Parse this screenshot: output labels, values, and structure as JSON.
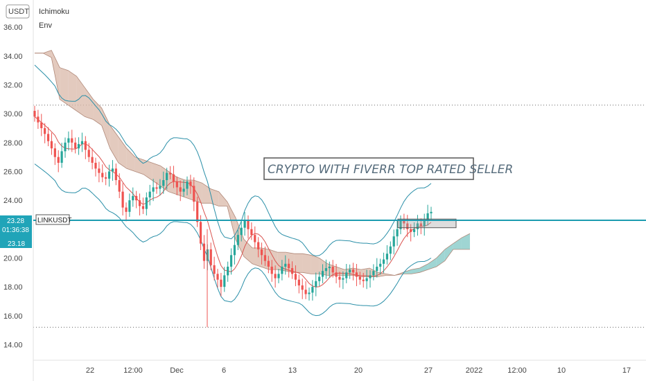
{
  "chart_data": {
    "type": "candlestick",
    "symbol": "LINKUSDT",
    "currency_label": "USDT",
    "indicators": [
      "Ichimoku",
      "Env"
    ],
    "annotation": "CRYPTO WITH FIVERR TOP RATED SELLER",
    "price_badges": {
      "last": "23.28",
      "countdown": "01:36:38",
      "other": "23.18"
    },
    "y_axis": {
      "ticks": [
        "36.00",
        "34.00",
        "32.00",
        "30.00",
        "28.00",
        "26.00",
        "24.00",
        "22.00",
        "20.00",
        "18.00",
        "16.00",
        "14.00"
      ],
      "ylim": [
        13.3,
        37.5
      ]
    },
    "x_axis": {
      "ticks": [
        "22",
        "12:00",
        "Dec",
        "6",
        "13",
        "20",
        "27",
        "2022",
        "12:00",
        "10",
        "17"
      ]
    },
    "reference_lines": [
      30.6,
      23.3,
      15.2
    ],
    "close": [
      29.8,
      29.4,
      29.0,
      28.6,
      28.1,
      27.6,
      27.0,
      26.6,
      27.4,
      28.0,
      28.3,
      28.0,
      27.6,
      27.9,
      28.1,
      27.5,
      27.0,
      26.6,
      26.2,
      25.9,
      25.6,
      25.5,
      26.0,
      26.2,
      25.4,
      24.6,
      23.5,
      23.2,
      24.0,
      24.3,
      24.0,
      23.6,
      23.4,
      24.2,
      24.6,
      24.9,
      24.8,
      25.0,
      25.4,
      25.9,
      25.8,
      25.3,
      24.9,
      24.6,
      24.8,
      25.3,
      25.0,
      23.9,
      22.5,
      21.0,
      19.8,
      20.6,
      19.5,
      18.9,
      18.5,
      18.0,
      18.8,
      19.4,
      20.2,
      20.9,
      21.6,
      22.1,
      22.6,
      22.0,
      21.6,
      21.1,
      20.6,
      20.2,
      19.8,
      19.4,
      18.9,
      18.6,
      18.9,
      19.4,
      19.6,
      19.3,
      18.9,
      18.5,
      18.1,
      17.8,
      17.5,
      17.6,
      18.0,
      18.4,
      18.7,
      19.1,
      19.3,
      19.4,
      19.0,
      18.7,
      18.5,
      18.6,
      19.0,
      19.2,
      19.0,
      18.7,
      18.5,
      18.4,
      18.6,
      18.8,
      19.1,
      19.4,
      19.6,
      19.9,
      20.3,
      20.8,
      21.5,
      22.0,
      22.6,
      22.4,
      22.0,
      21.8,
      22.0,
      22.4,
      22.2,
      22.6,
      23.1,
      23.2
    ],
    "ichimoku_cloud": {
      "a": [
        34.2,
        34.2,
        34.4,
        33.2,
        33.0,
        32.6,
        31.8,
        31.0,
        30.4,
        29.2,
        28.4,
        27.6,
        27.0,
        26.8,
        26.6,
        26.4,
        26.0,
        25.6,
        25.4,
        25.4,
        25.2,
        24.8,
        24.6,
        23.9,
        22.8,
        21.3,
        20.7,
        20.7,
        20.6,
        20.4,
        20.4,
        20.3,
        20.3,
        20.2,
        20.0,
        19.6,
        19.4,
        19.2,
        19.3,
        19.2,
        19.3,
        19.0,
        18.9,
        18.8,
        19.0,
        19.2,
        19.3,
        19.6,
        20.0,
        20.6,
        21.0,
        21.4,
        21.7
      ],
      "b": [
        34.2,
        34.2,
        33.9,
        31.0,
        30.6,
        30.2,
        29.8,
        29.6,
        29.2,
        27.6,
        26.6,
        26.2,
        26.0,
        25.8,
        25.4,
        25.0,
        24.6,
        24.4,
        24.2,
        24.0,
        23.8,
        23.8,
        23.6,
        23.6,
        21.3,
        20.1,
        19.6,
        19.4,
        19.2,
        19.2,
        19.1,
        19.0,
        19.0,
        18.9,
        18.9,
        18.8,
        18.8,
        18.8,
        18.8,
        18.7,
        18.7,
        18.7,
        18.8,
        18.8,
        18.9,
        18.9,
        19.0,
        19.2,
        19.4,
        19.8,
        20.6,
        20.6,
        20.6
      ]
    },
    "zone_box": [
      22.7,
      22.1
    ]
  }
}
